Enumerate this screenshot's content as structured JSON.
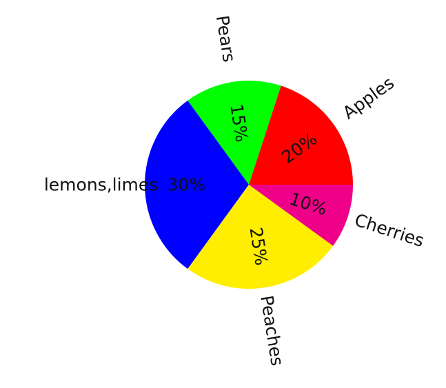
{
  "chart_data": {
    "type": "pie",
    "start_angle": 0,
    "direction": "counterclockwise",
    "rotate_labels": true,
    "slices": [
      {
        "label": "Apples",
        "value": 20,
        "pct_label": "20%",
        "color": "#ff0000"
      },
      {
        "label": "Pears",
        "value": 15,
        "pct_label": "15%",
        "color": "#00ff00"
      },
      {
        "label": "lemons,limes",
        "value": 30,
        "pct_label": "30%",
        "color": "#0000ff"
      },
      {
        "label": "Peaches",
        "value": 25,
        "pct_label": "25%",
        "color": "#ffee00"
      },
      {
        "label": "Cherries",
        "value": 10,
        "pct_label": "10%",
        "color": "#ee0088"
      }
    ]
  }
}
